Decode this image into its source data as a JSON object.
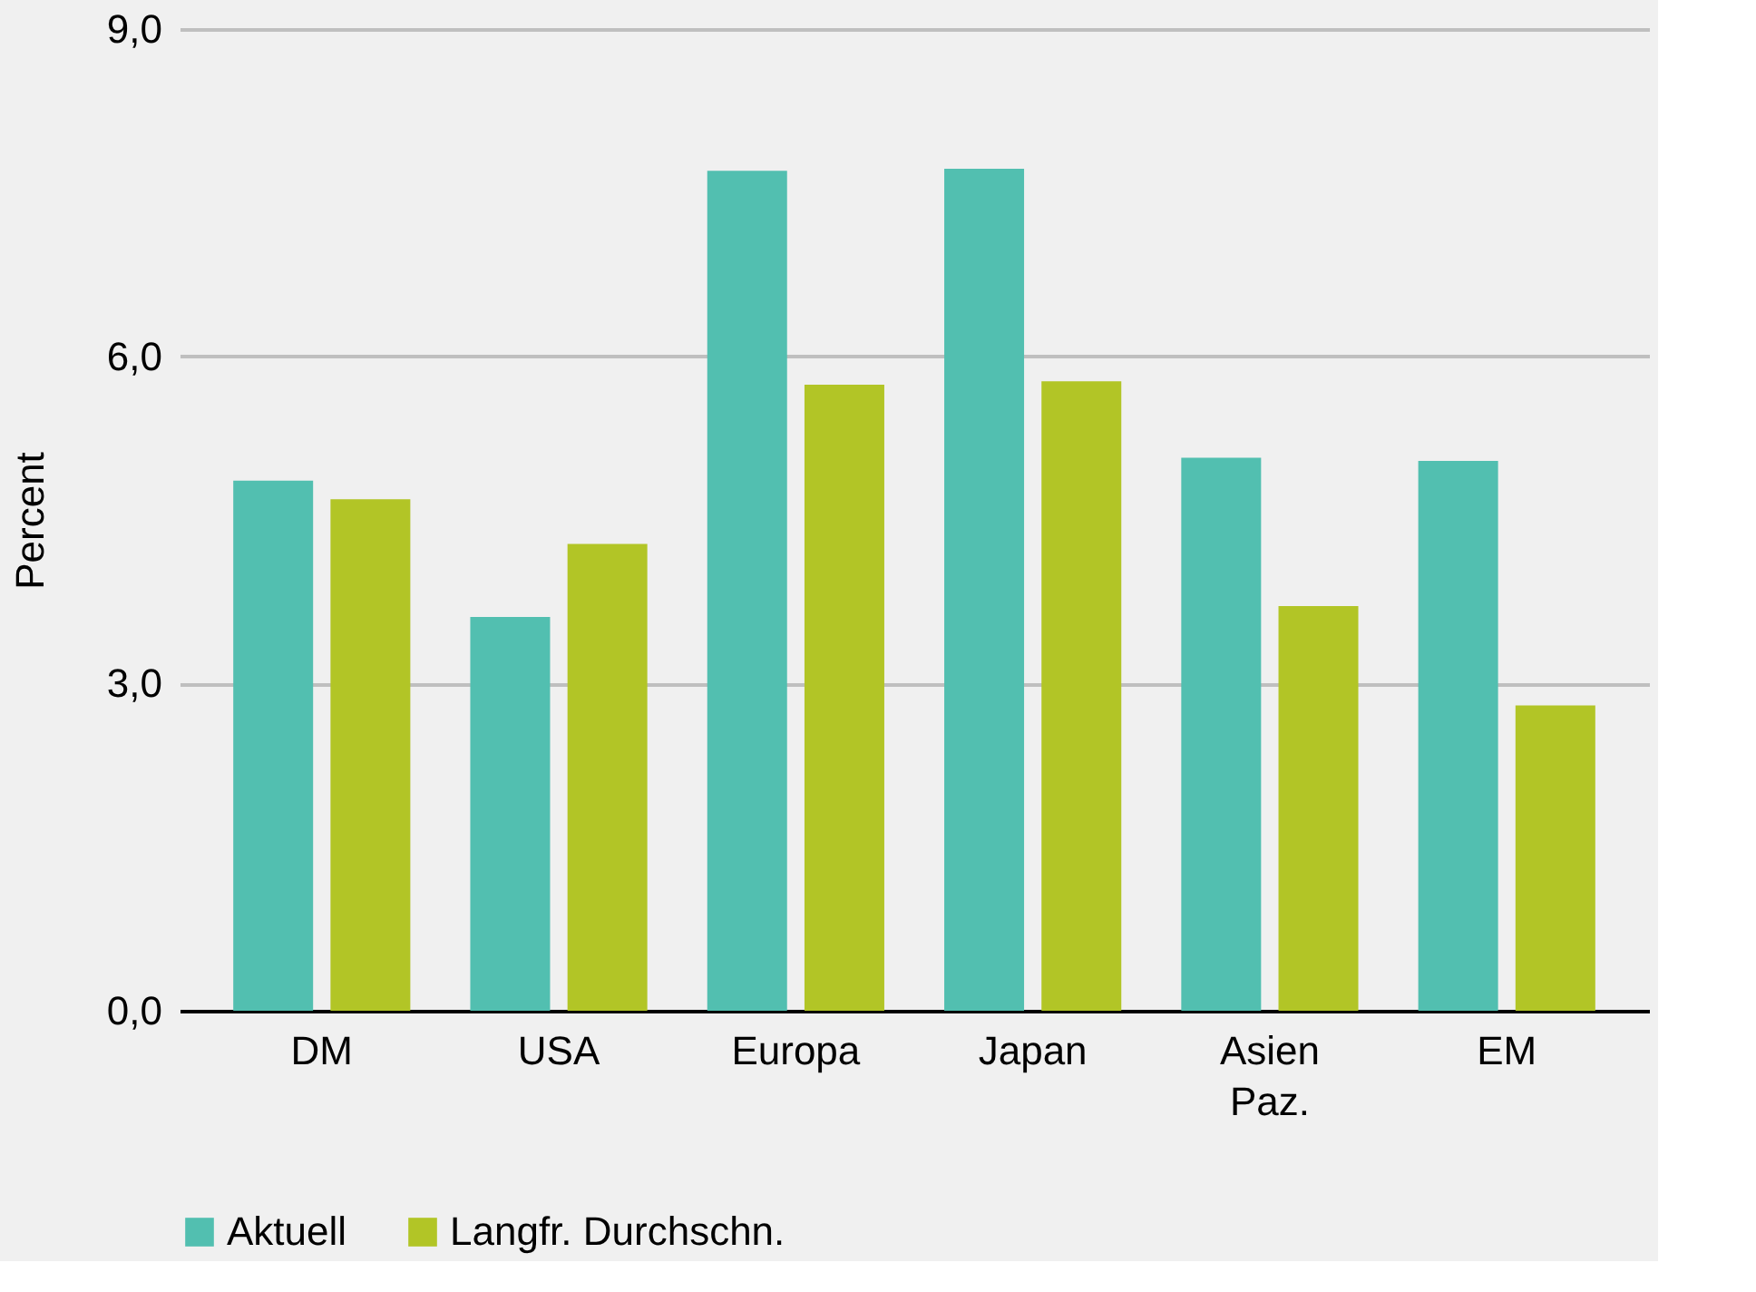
{
  "chart_data": {
    "type": "bar",
    "ylabel": "Percent",
    "categories": [
      "DM",
      "USA",
      "Europa",
      "Japan",
      "Asien Paz.",
      "EM"
    ],
    "series": [
      {
        "name": "Aktuell",
        "color": "#52bfb0",
        "values": [
          4.86,
          3.61,
          7.7,
          7.72,
          5.07,
          5.04
        ]
      },
      {
        "name": "Langfr. Durchschn.",
        "color": "#b2c526",
        "values": [
          4.69,
          4.28,
          5.74,
          5.77,
          3.71,
          2.8
        ]
      }
    ],
    "ylim": [
      0,
      9
    ],
    "yticks": [
      {
        "value": 0,
        "label": "0,0"
      },
      {
        "value": 3,
        "label": "3,0"
      },
      {
        "value": 6,
        "label": "6,0"
      },
      {
        "value": 9,
        "label": "9,0"
      }
    ],
    "grid": "y",
    "legend": "bottom"
  }
}
